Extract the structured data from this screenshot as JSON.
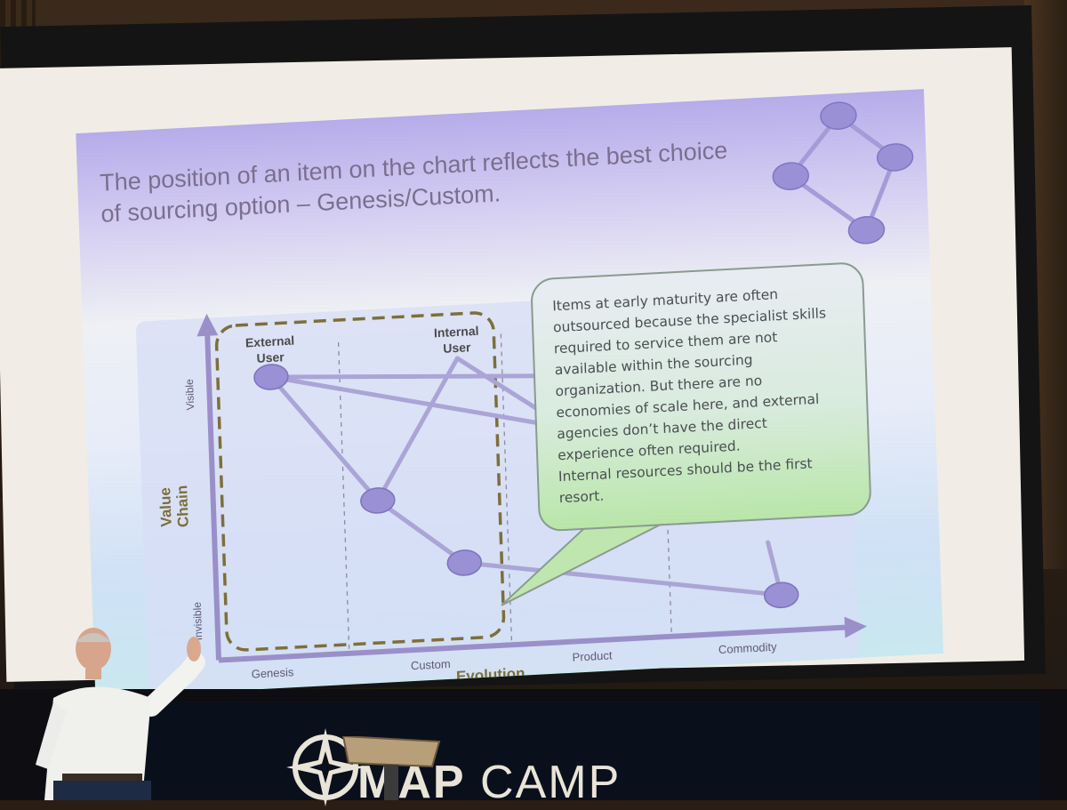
{
  "slide": {
    "title_line1": "The position of an item on the chart reflects the best choice",
    "title_line2": "of sourcing option – Genesis/Custom.",
    "chart": {
      "y_axis_title_1": "Value",
      "y_axis_title_2": "Chain",
      "y_top_label": "Visible",
      "y_bottom_label": "Invisible",
      "x_axis_title": "Evolution",
      "x_stages": [
        "Genesis",
        "Custom",
        "Product",
        "Commodity"
      ],
      "nodes": [
        {
          "label_1": "External",
          "label_2": "User"
        },
        {
          "label_1": "Internal",
          "label_2": "User"
        }
      ]
    },
    "callout_lines": [
      "Items at early maturity are often",
      "outsourced because the specialist skills",
      "required to service them are not",
      "available within the sourcing",
      "organization. But there are no",
      "economies of scale here, and external",
      "agencies don’t have the direct",
      "experience often required.",
      "Internal resources should be the first",
      "resort."
    ]
  },
  "event": {
    "logo_word_1": "MAP",
    "logo_word_2": "CAMP"
  },
  "colors": {
    "node_fill": "#9c93d6",
    "line": "#a8a3d2",
    "dash_box": "#7d6f3a",
    "title_text": "#7b6f8e"
  }
}
